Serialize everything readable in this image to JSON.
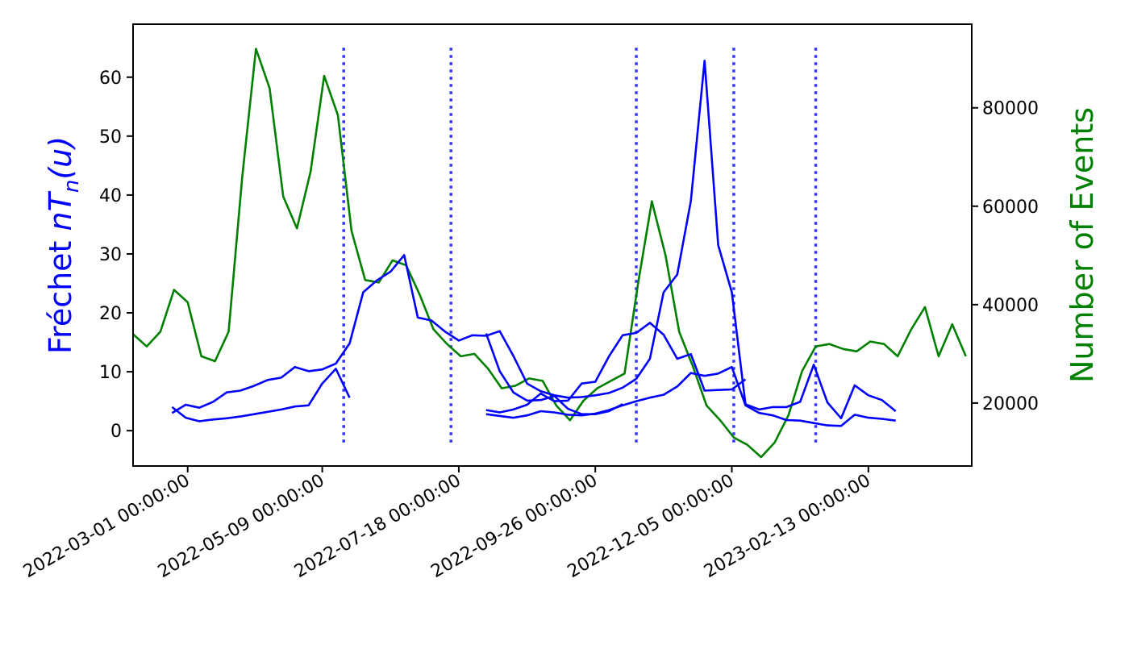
{
  "chart_data": {
    "type": "line",
    "x_axis": {
      "type": "date",
      "range": [
        "2022-02-01",
        "2023-04-07"
      ],
      "ticks": [
        "2022-03-01",
        "2022-05-09",
        "2022-07-18",
        "2022-09-26",
        "2022-12-05",
        "2023-02-13"
      ],
      "tick_labels": [
        "2022-03-01 00:00:00",
        "2022-05-09 00:00:00",
        "2022-07-18 00:00:00",
        "2022-09-26 00:00:00",
        "2022-12-05 00:00:00",
        "2023-02-13 00:00:00"
      ]
    },
    "y_left": {
      "label": "Fréchet",
      "label_math": "nT",
      "label_sub": "n",
      "label_tail": "(u)",
      "color": "#0000ff",
      "ylim": [
        -6,
        69
      ],
      "ticks": [
        0,
        10,
        20,
        30,
        40,
        50,
        60
      ]
    },
    "y_right": {
      "label": "Number of Events",
      "color": "#008000",
      "ylim": [
        7200,
        97000
      ],
      "ticks": [
        20000,
        40000,
        60000,
        80000
      ],
      "tick_labels": [
        "20000",
        "40000",
        "60000",
        "80000"
      ]
    },
    "vlines": {
      "style": "dotted",
      "color": "#3333ff",
      "dates": [
        "2022-05-20",
        "2022-07-14",
        "2022-10-17",
        "2022-12-06",
        "2023-01-17"
      ],
      "y_range": [
        -2.5,
        65
      ]
    },
    "series_left": [
      {
        "axis": "left",
        "x": [
          "2022-02-21",
          "2022-02-28",
          "2022-03-07",
          "2022-03-14",
          "2022-03-21",
          "2022-03-28",
          "2022-04-04",
          "2022-04-11",
          "2022-04-18",
          "2022-04-25",
          "2022-05-02",
          "2022-05-09",
          "2022-05-16",
          "2022-05-23",
          "2022-05-30",
          "2022-06-06",
          "2022-06-13",
          "2022-06-20",
          "2022-06-27",
          "2022-07-04",
          "2022-07-11",
          "2022-07-18",
          "2022-07-25",
          "2022-08-01",
          "2022-08-08",
          "2022-08-15",
          "2022-08-22",
          "2022-08-29",
          "2022-09-05",
          "2022-09-12",
          "2022-09-19",
          "2022-09-26",
          "2022-10-03",
          "2022-10-10",
          "2022-10-17",
          "2022-10-24",
          "2022-10-31",
          "2022-11-07",
          "2022-11-14",
          "2022-11-21",
          "2022-11-28",
          "2022-12-05",
          "2022-12-12",
          "2022-12-19",
          "2022-12-26",
          "2023-01-02",
          "2023-01-09",
          "2023-01-16",
          "2023-01-23",
          "2023-01-30",
          "2023-02-06",
          "2023-02-13",
          "2023-02-20",
          "2023-02-27"
        ],
        "values": [
          3.0,
          4.4,
          3.9,
          4.9,
          6.5,
          6.8,
          7.6,
          8.6,
          9.0,
          10.8,
          10.1,
          10.4,
          11.4,
          14.8,
          23.5,
          25.5,
          27.0,
          29.8,
          19.2,
          18.7,
          16.8,
          15.3,
          16.2,
          16.1,
          16.9,
          12.7,
          8.0,
          6.7,
          6.0,
          5.6,
          5.7,
          6.0,
          6.4,
          7.3,
          8.8,
          12.2,
          23.5,
          26.5,
          39.0,
          62.8,
          31.5,
          23.5,
          4.5,
          3.6,
          4.0,
          4.0,
          4.9,
          11.2,
          4.8,
          2.1,
          7.7,
          6.0,
          5.2,
          3.3
        ]
      },
      {
        "axis": "left",
        "x": [
          "2022-02-21",
          "2022-02-28",
          "2022-03-07",
          "2022-03-14",
          "2022-03-21",
          "2022-03-28",
          "2022-04-04",
          "2022-04-11",
          "2022-04-18",
          "2022-04-25",
          "2022-05-02",
          "2022-05-09",
          "2022-05-16",
          "2022-05-23"
        ],
        "values": [
          4.0,
          2.2,
          1.6,
          1.9,
          2.1,
          2.4,
          2.8,
          3.2,
          3.6,
          4.1,
          4.3,
          8.0,
          10.5,
          5.6
        ]
      },
      {
        "axis": "left",
        "x": [
          "2022-08-01",
          "2022-08-08",
          "2022-08-15",
          "2022-08-22",
          "2022-08-29",
          "2022-09-05",
          "2022-09-12",
          "2022-09-19",
          "2022-09-26",
          "2022-10-03",
          "2022-10-10",
          "2022-10-17",
          "2022-10-24",
          "2022-10-31",
          "2022-11-07",
          "2022-11-14",
          "2022-11-21",
          "2022-11-28",
          "2022-12-05",
          "2022-12-12",
          "2022-12-19",
          "2022-12-26",
          "2023-01-02",
          "2023-01-09",
          "2023-01-16",
          "2023-01-23",
          "2023-01-30",
          "2023-02-06",
          "2023-02-13",
          "2023-02-20",
          "2023-02-27"
        ],
        "values": [
          2.8,
          2.5,
          2.2,
          2.6,
          3.3,
          3.1,
          2.7,
          2.6,
          2.9,
          3.5,
          4.3,
          5.0,
          5.6,
          6.1,
          7.5,
          9.8,
          9.3,
          9.7,
          10.8,
          4.3,
          3.0,
          2.6,
          1.8,
          1.7,
          1.3,
          0.9,
          0.8,
          2.7,
          2.2,
          2.0,
          1.7
        ]
      },
      {
        "axis": "left",
        "x": [
          "2022-08-01",
          "2022-08-08",
          "2022-08-15",
          "2022-08-22",
          "2022-08-29",
          "2022-09-05",
          "2022-09-12",
          "2022-09-19",
          "2022-09-26",
          "2022-10-03",
          "2022-10-10",
          "2022-10-17",
          "2022-10-24",
          "2022-10-31",
          "2022-11-07",
          "2022-11-14",
          "2022-11-21",
          "2022-11-28",
          "2022-12-05",
          "2022-12-12"
        ],
        "values": [
          3.5,
          3.1,
          3.6,
          4.4,
          6.3,
          5.0,
          5.1,
          8.0,
          8.3,
          12.6,
          16.2,
          16.6,
          18.3,
          16.3,
          12.2,
          13.0,
          6.8,
          6.9,
          7.0,
          8.7
        ]
      },
      {
        "axis": "left",
        "x": [
          "2022-08-01",
          "2022-08-08",
          "2022-08-15",
          "2022-08-22",
          "2022-08-29",
          "2022-09-05",
          "2022-09-12",
          "2022-09-19",
          "2022-09-26",
          "2022-10-03",
          "2022-10-10"
        ],
        "values": [
          16.5,
          10.1,
          6.5,
          5.1,
          5.2,
          5.9,
          3.7,
          2.8,
          2.8,
          3.3,
          4.5
        ]
      }
    ],
    "series_right": {
      "axis": "right",
      "x": [
        "2022-02-01",
        "2022-02-08",
        "2022-02-15",
        "2022-02-22",
        "2022-03-01",
        "2022-03-08",
        "2022-03-15",
        "2022-03-22",
        "2022-03-29",
        "2022-04-05",
        "2022-04-12",
        "2022-04-19",
        "2022-04-26",
        "2022-05-03",
        "2022-05-10",
        "2022-05-17",
        "2022-05-24",
        "2022-05-31",
        "2022-06-07",
        "2022-06-14",
        "2022-06-21",
        "2022-06-28",
        "2022-07-05",
        "2022-07-12",
        "2022-07-19",
        "2022-07-26",
        "2022-08-02",
        "2022-08-09",
        "2022-08-16",
        "2022-08-23",
        "2022-08-30",
        "2022-09-06",
        "2022-09-13",
        "2022-09-20",
        "2022-09-27",
        "2022-10-04",
        "2022-10-11",
        "2022-10-18",
        "2022-10-25",
        "2022-11-01",
        "2022-11-08",
        "2022-11-15",
        "2022-11-22",
        "2022-11-29",
        "2022-12-06",
        "2022-12-13",
        "2022-12-20",
        "2022-12-27",
        "2023-01-03",
        "2023-01-10",
        "2023-01-17",
        "2023-01-24",
        "2023-01-31",
        "2023-02-07",
        "2023-02-14",
        "2023-02-21",
        "2023-02-28",
        "2023-03-07",
        "2023-03-14",
        "2023-03-21",
        "2023-03-28",
        "2023-04-04"
      ],
      "values": [
        34000,
        31500,
        34500,
        43000,
        40500,
        29500,
        28500,
        34500,
        66000,
        92000,
        84000,
        62000,
        55500,
        67000,
        86500,
        78500,
        55000,
        45000,
        44500,
        49000,
        48000,
        42000,
        35000,
        32000,
        29500,
        30000,
        27000,
        23000,
        23500,
        25000,
        24500,
        19500,
        16500,
        20500,
        23000,
        24500,
        26000,
        44500,
        61000,
        50000,
        34500,
        27500,
        19500,
        16500,
        13000,
        11500,
        9000,
        12000,
        17500,
        26500,
        31500,
        32000,
        31000,
        30500,
        32500,
        32000,
        29500,
        35000,
        39500,
        29500,
        36000,
        29500
      ],
      "y_clip_note": ""
    }
  }
}
